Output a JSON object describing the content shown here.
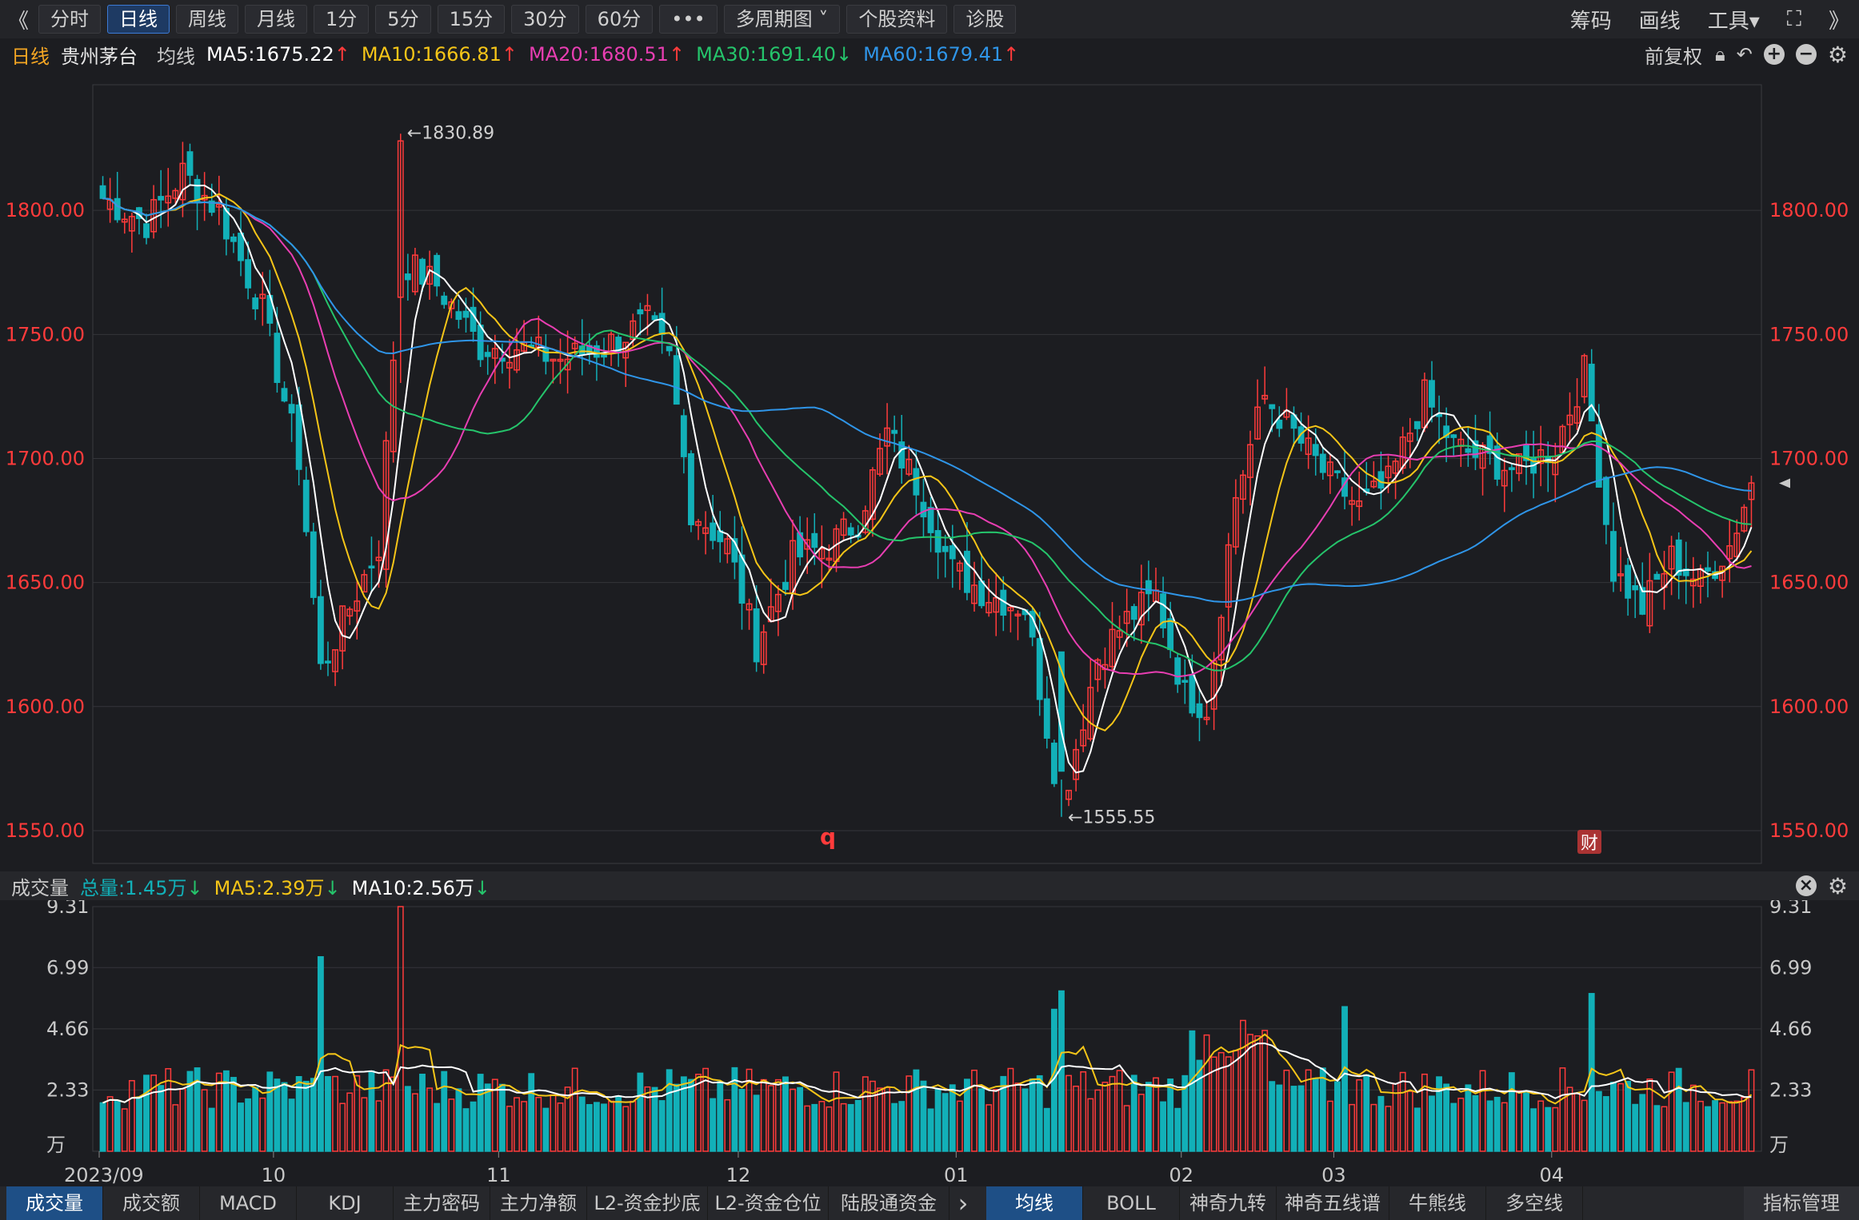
{
  "toolbar": {
    "back": "《",
    "tabs": [
      "分时",
      "日线",
      "周线",
      "月线",
      "1分",
      "5分",
      "15分",
      "30分",
      "60分",
      "•••",
      "多周期图 ˅",
      "个股资料",
      "诊股"
    ],
    "active": "日线",
    "right": [
      "筹码",
      "画线",
      "工具▾"
    ],
    "fullscreen_icon": "⛶",
    "more": "》"
  },
  "info": {
    "period": "日线",
    "name": "贵州茅台",
    "ma_label": "均线",
    "ma5": "MA5:1675.22",
    "ma10": "MA10:1666.81",
    "ma20": "MA20:1680.51",
    "ma30": "MA30:1691.40",
    "ma60": "MA60:1679.41",
    "adjust": "前复权"
  },
  "colors": {
    "up": "#ff3b3b",
    "down": "#12b0b8",
    "ma5": "#ffffff",
    "ma10": "#f5c518",
    "ma20": "#e83eb2",
    "ma30": "#25c46b",
    "ma60": "#2f95e8",
    "price_axis": "#ff3b3b"
  },
  "annotations": {
    "high": "←1830.89",
    "low": "←1555.55",
    "marker_q": "q",
    "marker_cai": "财"
  },
  "volume": {
    "title": "成交量",
    "total": "总量:1.45万",
    "ma5": "MA5:2.39万",
    "ma10": "MA10:2.56万",
    "unit": "万"
  },
  "chart_data": [
    {
      "type": "candlestick",
      "title": "贵州茅台 日线",
      "ylim": [
        1540,
        1850
      ],
      "y_ticks": [
        "1800.00",
        "1750.00",
        "1700.00",
        "1650.00",
        "1600.00",
        "1550.00"
      ],
      "x_ticks": [
        "2023/09",
        "10",
        "11",
        "12",
        "01",
        "02",
        "03",
        "04"
      ],
      "series_ma": [
        "MA5",
        "MA10",
        "MA20",
        "MA30",
        "MA60"
      ],
      "high": 1830.89,
      "low": 1555.55
    },
    {
      "type": "bar",
      "title": "成交量",
      "y_ticks": [
        "9.31",
        "6.99",
        "4.66",
        "2.33",
        "万"
      ],
      "ylim": [
        0,
        9.31
      ]
    }
  ],
  "bottom_tabs": {
    "left": [
      "成交量",
      "成交额",
      "MACD",
      "KDJ",
      "主力密码",
      "主力净额",
      "L2-资金抄底",
      "L2-资金仓位",
      "陆股通资金"
    ],
    "left_active": "成交量",
    "right": [
      "均线",
      "BOLL",
      "神奇九转",
      "神奇五线谱",
      "牛熊线",
      "多空线"
    ],
    "right_active": "均线",
    "manage": "指标管理",
    "next": "›"
  }
}
